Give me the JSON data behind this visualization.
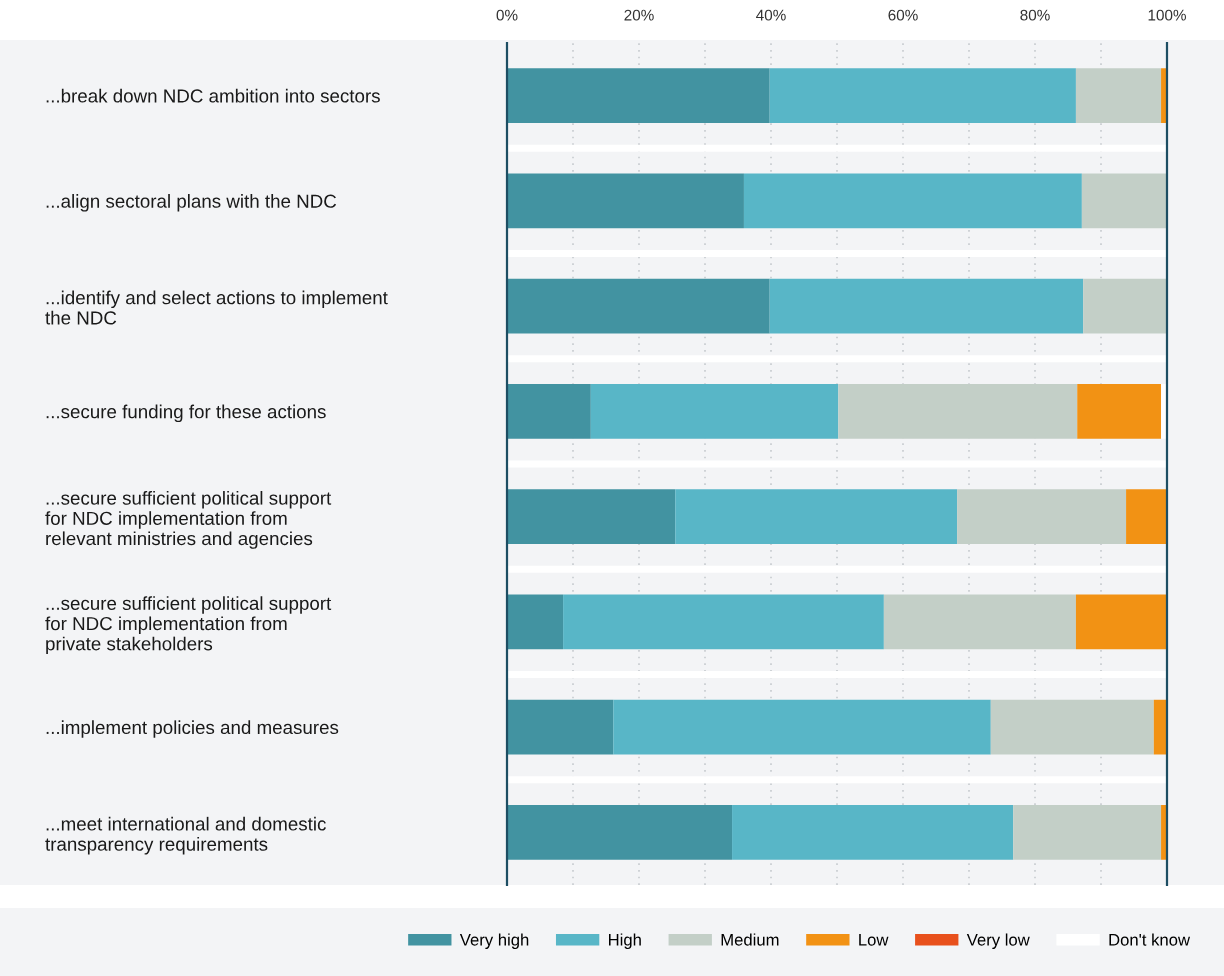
{
  "chart_data": {
    "type": "bar",
    "orientation": "horizontal",
    "stacked": true,
    "categories": [
      "...break down NDC ambition into sectors",
      "...align sectoral plans with the NDC",
      "...identify and select actions to implement\nthe NDC",
      "...secure funding for these actions",
      "...secure sufficient political support\nfor NDC implementation from\nrelevant ministries and agencies",
      "...secure sufficient political support\nfor NDC implementation from\nprivate stakeholders",
      "...implement policies and measures",
      "...meet international and domestic\ntransparency requirements"
    ],
    "series": [
      {
        "name": "Very high",
        "color": "#4293a1",
        "values": [
          39.8,
          35.9,
          39.8,
          12.7,
          25.5,
          8.5,
          16.1,
          34.1
        ]
      },
      {
        "name": "High",
        "color": "#58b6c7",
        "values": [
          46.4,
          51.2,
          47.5,
          37.5,
          42.7,
          48.6,
          57.2,
          42.6
        ]
      },
      {
        "name": "Medium",
        "color": "#c3cfc7",
        "values": [
          12.9,
          12.9,
          12.7,
          36.2,
          25.6,
          29.1,
          24.7,
          22.4
        ]
      },
      {
        "name": "Low",
        "color": "#f29214",
        "values": [
          0.9,
          0,
          0,
          12.7,
          6.2,
          13.8,
          2.0,
          0.9
        ]
      },
      {
        "name": "Very low",
        "color": "#e8501c",
        "values": [
          0,
          0,
          0,
          0,
          0,
          0,
          0,
          0
        ]
      },
      {
        "name": "Don't know",
        "color": "#ffffff",
        "values": [
          0,
          0,
          0,
          0.9,
          0,
          0,
          0,
          0
        ]
      }
    ],
    "xlim": [
      0,
      100
    ],
    "xticks": [
      {
        "value": 0,
        "label": "0%"
      },
      {
        "value": 10,
        "label": null
      },
      {
        "value": 20,
        "label": "20%"
      },
      {
        "value": 30,
        "label": null
      },
      {
        "value": 40,
        "label": "40%"
      },
      {
        "value": 50,
        "label": null
      },
      {
        "value": 60,
        "label": "60%"
      },
      {
        "value": 70,
        "label": null
      },
      {
        "value": 80,
        "label": "80%"
      },
      {
        "value": 90,
        "label": null
      },
      {
        "value": 100,
        "label": "100%"
      }
    ],
    "grid": "x",
    "legend": "bottom"
  }
}
